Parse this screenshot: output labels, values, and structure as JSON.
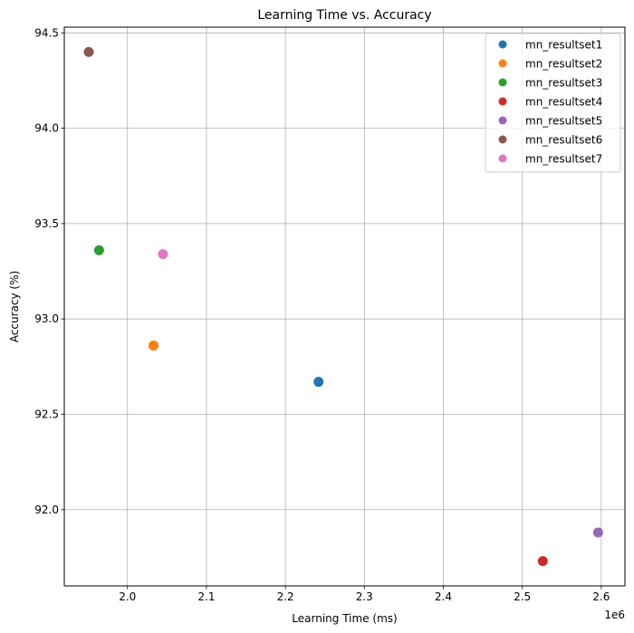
{
  "chart_data": {
    "type": "scatter",
    "title": "Learning Time vs. Accuracy",
    "xlabel": "Learning Time (ms)",
    "ylabel": "Accuracy (%)",
    "x_offset_label": "1e6",
    "x_scale": 1000000,
    "xlim": [
      1920000,
      2630000
    ],
    "ylim": [
      91.6,
      94.53
    ],
    "xticks": [
      2000000,
      2100000,
      2200000,
      2300000,
      2400000,
      2500000,
      2600000
    ],
    "xtick_labels": [
      "2.0",
      "2.1",
      "2.2",
      "2.3",
      "2.4",
      "2.5",
      "2.6"
    ],
    "yticks": [
      92.0,
      92.5,
      93.0,
      93.5,
      94.0,
      94.5
    ],
    "ytick_labels": [
      "92.0",
      "92.5",
      "93.0",
      "93.5",
      "94.0",
      "94.5"
    ],
    "grid": true,
    "legend_position": "top-right",
    "series": [
      {
        "name": "mn_resultset1",
        "color": "#1f77b4",
        "x": 2242000,
        "y": 92.67
      },
      {
        "name": "mn_resultset2",
        "color": "#ff7f0e",
        "x": 2033000,
        "y": 92.86
      },
      {
        "name": "mn_resultset3",
        "color": "#2ca02c",
        "x": 1964000,
        "y": 93.36
      },
      {
        "name": "mn_resultset4",
        "color": "#d62728",
        "x": 2526000,
        "y": 91.73
      },
      {
        "name": "mn_resultset5",
        "color": "#9467bd",
        "x": 2596000,
        "y": 91.88
      },
      {
        "name": "mn_resultset6",
        "color": "#8c564b",
        "x": 1951000,
        "y": 94.4
      },
      {
        "name": "mn_resultset7",
        "color": "#e377c2",
        "x": 2045000,
        "y": 93.34
      }
    ]
  }
}
